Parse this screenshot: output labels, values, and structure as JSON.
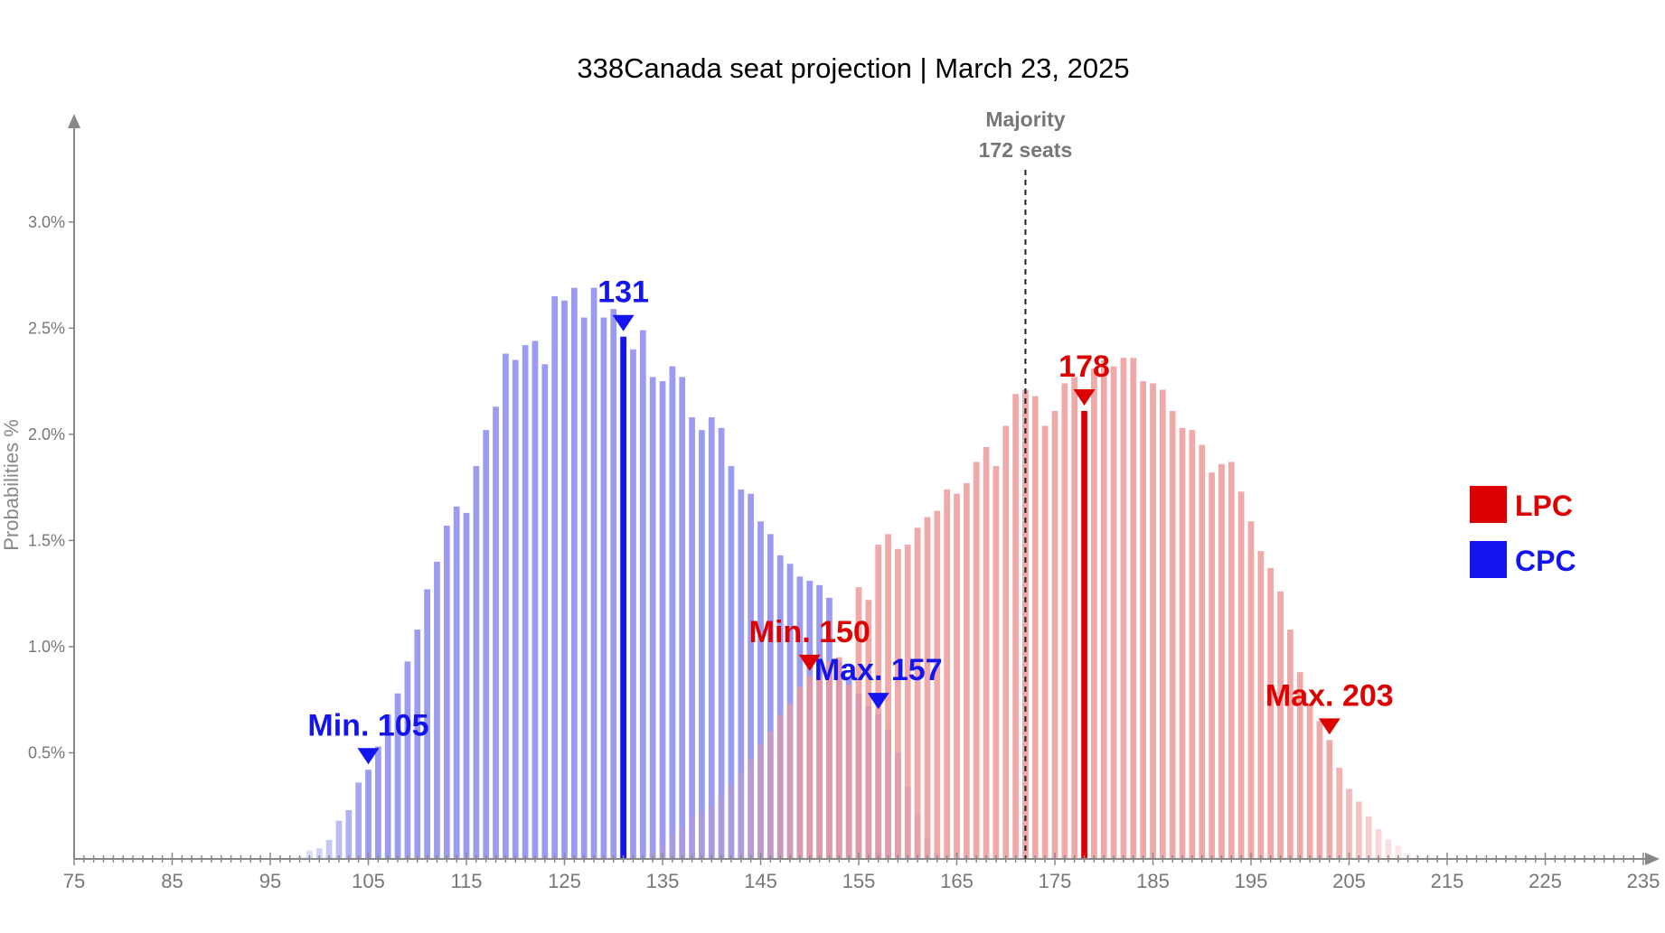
{
  "chart_data": {
    "type": "bar",
    "title": "338Canada seat projection | March 23, 2025",
    "ylabel": "Probabilities %",
    "xlabel": "",
    "xlim": [
      75,
      235
    ],
    "ylim": [
      0,
      3.45
    ],
    "x_ticks": [
      "75",
      "85",
      "95",
      "105",
      "115",
      "125",
      "135",
      "145",
      "155",
      "165",
      "175",
      "185",
      "195",
      "205",
      "215",
      "225",
      "235"
    ],
    "y_ticks": [
      "0.5%",
      "1.0%",
      "1.5%",
      "2.0%",
      "2.5%",
      "3.0%"
    ],
    "majority": {
      "seats": 172,
      "label_line1": "Majority",
      "label_line2": "172 seats"
    },
    "legend": {
      "placement": "right",
      "entries": [
        {
          "name": "LPC",
          "color": "#dd0000"
        },
        {
          "name": "CPC",
          "color": "#1414ee"
        }
      ]
    },
    "series": [
      {
        "name": "CPC",
        "color": "#1414ee",
        "bar_color": "#8a8aee",
        "median": 131,
        "median_label": "131",
        "min": 105,
        "min_label": "Min. 105",
        "max": 157,
        "max_label": "Max. 157",
        "x_start": 98,
        "values": [
          0.01,
          0.04,
          0.05,
          0.09,
          0.18,
          0.23,
          0.36,
          0.42,
          0.53,
          0.68,
          0.78,
          0.93,
          1.08,
          1.27,
          1.4,
          1.57,
          1.66,
          1.63,
          1.85,
          2.02,
          2.13,
          2.38,
          2.35,
          2.42,
          2.44,
          2.33,
          2.65,
          2.63,
          2.69,
          2.55,
          2.69,
          2.55,
          2.59,
          2.46,
          2.4,
          2.49,
          2.27,
          2.25,
          2.32,
          2.27,
          2.08,
          2.02,
          2.08,
          2.03,
          1.85,
          1.74,
          1.72,
          1.59,
          1.53,
          1.43,
          1.39,
          1.33,
          1.31,
          1.29,
          1.23,
          0.93,
          0.86,
          0.78,
          0.72,
          0.68,
          0.61,
          0.5,
          0.34,
          0.21,
          0.1,
          0.03,
          0.01
        ]
      },
      {
        "name": "LPC",
        "color": "#dd0000",
        "bar_color": "#ec9a9a",
        "median": 178,
        "median_label": "178",
        "min": 150,
        "min_label": "Min. 150",
        "max": 203,
        "max_label": "Max. 203",
        "x_start": 134,
        "values": [
          0.03,
          0.07,
          0.11,
          0.15,
          0.2,
          0.21,
          0.25,
          0.3,
          0.35,
          0.41,
          0.47,
          0.54,
          0.6,
          0.68,
          0.73,
          0.81,
          0.86,
          0.86,
          0.93,
          0.95,
          0.82,
          1.28,
          1.22,
          1.48,
          1.53,
          1.46,
          1.48,
          1.56,
          1.61,
          1.64,
          1.74,
          1.72,
          1.77,
          1.87,
          1.94,
          1.85,
          2.04,
          2.19,
          2.21,
          2.18,
          2.04,
          2.11,
          2.24,
          2.27,
          2.11,
          2.31,
          2.35,
          2.32,
          2.36,
          2.36,
          2.25,
          2.24,
          2.21,
          2.11,
          2.03,
          2.02,
          1.95,
          1.82,
          1.86,
          1.87,
          1.73,
          1.59,
          1.45,
          1.37,
          1.26,
          1.08,
          0.88,
          0.73,
          0.65,
          0.56,
          0.43,
          0.33,
          0.27,
          0.2,
          0.14,
          0.09,
          0.06,
          0.03,
          0.02,
          0.01
        ]
      }
    ]
  }
}
